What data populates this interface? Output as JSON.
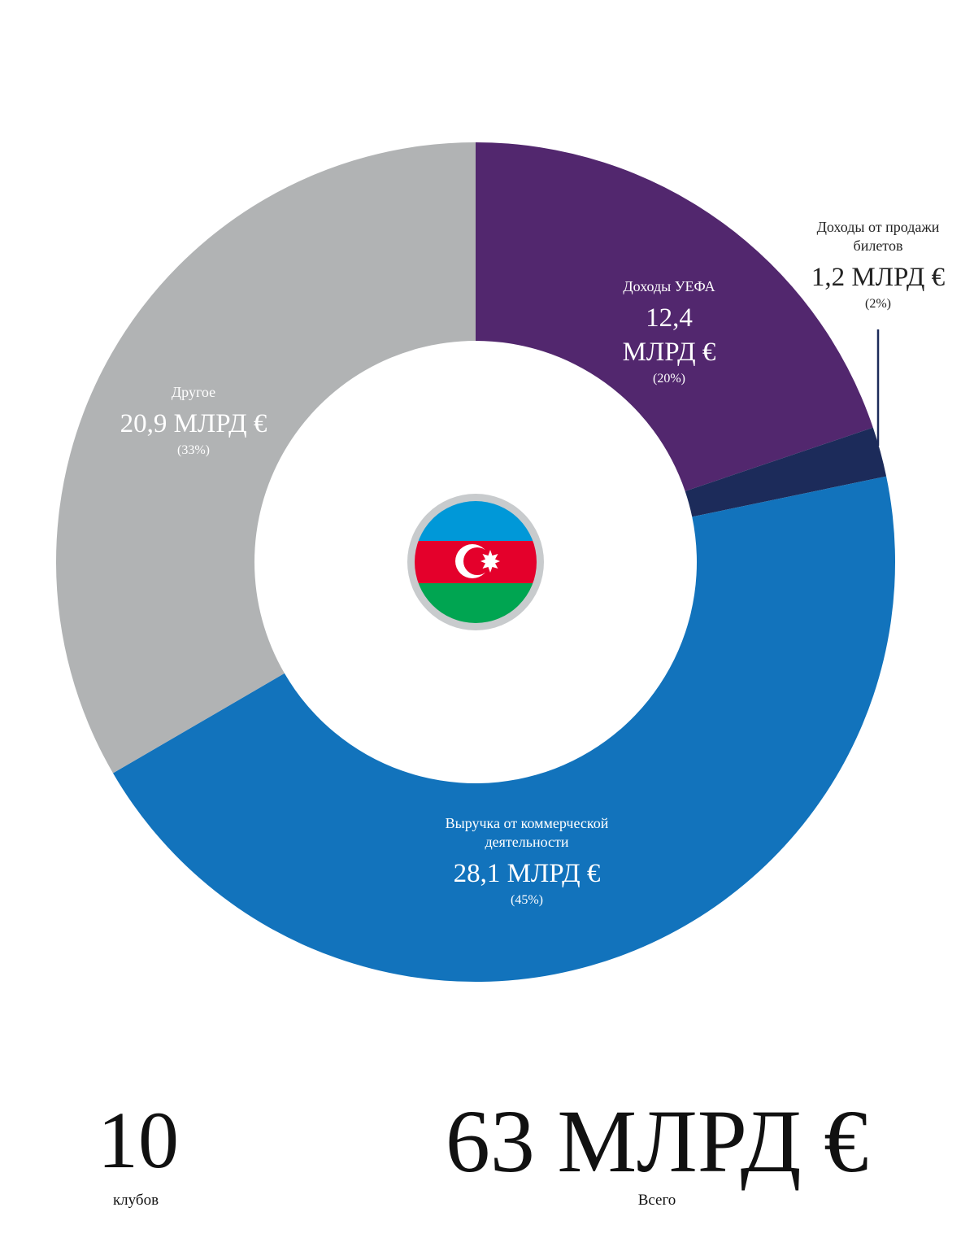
{
  "chart_data": {
    "type": "donut",
    "categories": [
      "Доходы УЕФА",
      "Доходы от продажи билетов",
      "Выручка от коммерческой деятельности",
      "Другое"
    ],
    "values": [
      12.4,
      1.2,
      28.1,
      20.9
    ],
    "value_labels": [
      "12,4 МЛРД €",
      "1,2 МЛРД €",
      "28,1 МЛРД €",
      "20,9 МЛРД €"
    ],
    "percents": [
      20,
      2,
      45,
      33
    ],
    "percent_labels": [
      "(20%)",
      "(2%)",
      "(45%)",
      "(33%)"
    ],
    "colors": [
      "#52276e",
      "#1c2b5a",
      "#1273bc",
      "#b1b3b4"
    ]
  },
  "summary": {
    "clubs": "10",
    "clubs_label": "клубов",
    "total": "63 МЛРД €",
    "total_label": "Всего"
  }
}
